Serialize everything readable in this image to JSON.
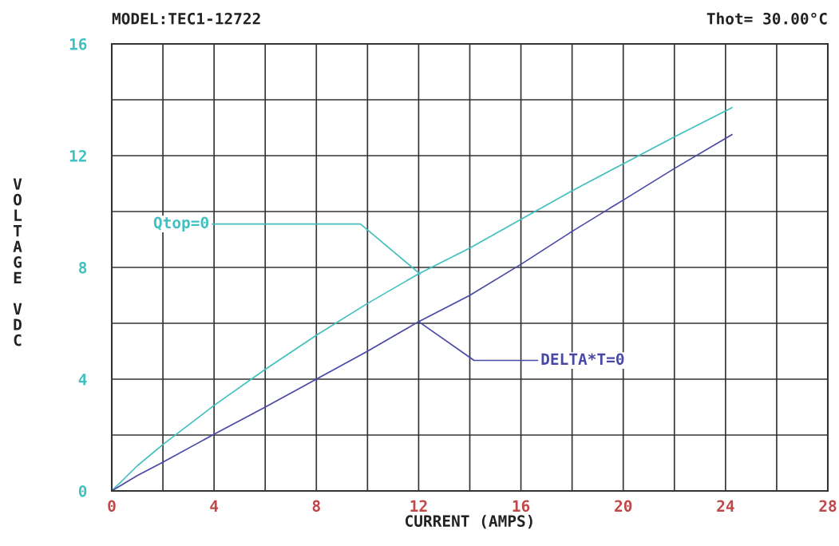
{
  "chart_data": {
    "type": "line",
    "title": "MODEL:TEC1-12722",
    "subtitle": "Thot= 30.00°C",
    "xlabel": "CURRENT (AMPS)",
    "ylabel": "VOLTAGE VDC",
    "series": [
      {
        "color": "#40c0c0",
        "x": [
          0,
          1,
          2,
          4,
          6,
          8,
          10,
          12,
          14,
          16,
          18,
          20,
          22,
          24.25
        ],
        "values": [
          0,
          0.9,
          1.66,
          3.06,
          4.35,
          5.57,
          6.71,
          7.77,
          8.69,
          9.72,
          10.74,
          11.71,
          12.67,
          13.72
        ]
      },
      {
        "color": "#4848a8",
        "x": [
          0,
          1,
          2,
          4,
          6,
          8,
          10,
          12,
          14,
          16,
          18,
          20,
          22,
          24.25
        ],
        "values": [
          0,
          0.55,
          1.03,
          2.03,
          3.0,
          4.0,
          5.0,
          6.06,
          7.0,
          8.11,
          9.29,
          10.41,
          11.54,
          12.75
        ]
      }
    ],
    "annotations": [
      {
        "text": "Qtop=0",
        "x": 12.05,
        "y": 7.77
      },
      {
        "text": "DELTA*T=0",
        "x": 12.0,
        "y": 6.06
      }
    ],
    "xlim": [
      0,
      28
    ],
    "ylim": [
      0,
      16
    ],
    "xticks": [
      0,
      {
        "value": 2,
        "label": null
      },
      4,
      {
        "value": 6,
        "label": null
      },
      8,
      {
        "value": 10,
        "label": null
      },
      12,
      {
        "value": 14,
        "label": null
      },
      16,
      {
        "value": 18,
        "label": null
      },
      20,
      {
        "value": 22,
        "label": null
      },
      24,
      {
        "value": 26,
        "label": null
      },
      28
    ],
    "yticks": [
      0,
      {
        "value": 2,
        "label": null
      },
      4,
      {
        "value": 6,
        "label": null
      },
      8,
      {
        "value": 10,
        "label": null
      },
      12,
      {
        "value": 14,
        "label": null
      },
      16
    ],
    "grid": true,
    "legend": false,
    "marker": "none",
    "line_style": "solid"
  }
}
